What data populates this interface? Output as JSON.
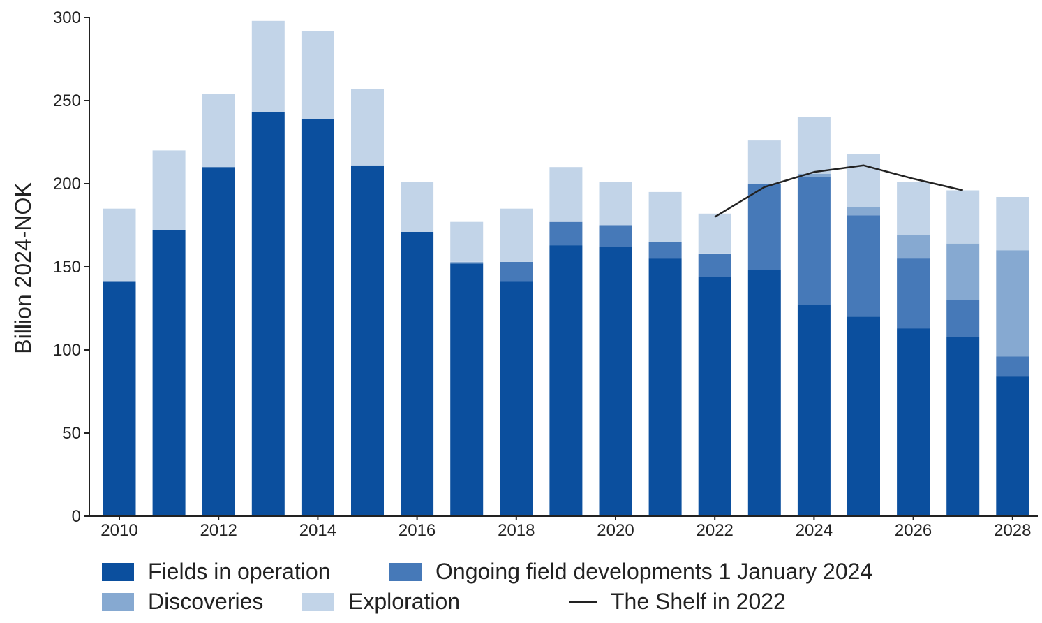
{
  "chart_data": {
    "type": "bar",
    "ylabel": "Billion 2024-NOK",
    "ylim": [
      0,
      300
    ],
    "yticks": [
      0,
      50,
      100,
      150,
      200,
      250,
      300
    ],
    "xtick_labels": [
      "2010",
      "2012",
      "2014",
      "2016",
      "2018",
      "2020",
      "2022",
      "2024",
      "2026",
      "2028"
    ],
    "categories": [
      "2010",
      "2011",
      "2012",
      "2013",
      "2014",
      "2015",
      "2016",
      "2017",
      "2018",
      "2019",
      "2020",
      "2021",
      "2022",
      "2023",
      "2024",
      "2025",
      "2026",
      "2027",
      "2028"
    ],
    "series": [
      {
        "name": "Fields in operation",
        "color": "#0b4f9e",
        "values": [
          141,
          172,
          210,
          243,
          239,
          211,
          171,
          152,
          141,
          163,
          162,
          155,
          144,
          148,
          127,
          120,
          113,
          108,
          84
        ]
      },
      {
        "name": "Ongoing field developments 1 January 2024",
        "color": "#4679b8",
        "values": [
          0,
          0,
          0,
          0,
          0,
          0,
          0,
          0,
          12,
          14,
          13,
          10,
          14,
          52,
          77,
          61,
          42,
          22,
          12
        ]
      },
      {
        "name": "Discoveries",
        "color": "#86a9d1",
        "values": [
          0,
          0,
          0,
          0,
          0,
          0,
          0,
          1,
          0,
          0,
          0,
          0,
          0,
          0,
          2,
          5,
          14,
          34,
          64
        ]
      },
      {
        "name": "Exploration",
        "color": "#c2d4e8",
        "values": [
          44,
          48,
          44,
          55,
          53,
          46,
          30,
          24,
          32,
          33,
          26,
          30,
          24,
          26,
          34,
          32,
          32,
          32,
          32
        ]
      }
    ],
    "line_series": {
      "name": "The Shelf in 2022",
      "color": "#222222",
      "x": [
        "2022",
        "2023",
        "2024",
        "2025",
        "2026",
        "2027"
      ],
      "values": [
        180,
        198,
        207,
        211,
        203,
        196
      ]
    },
    "legend": {
      "placement": "bottom",
      "items": [
        {
          "label": "Fields in operation",
          "kind": "box",
          "color": "#0b4f9e"
        },
        {
          "label": "Ongoing field developments 1 January 2024",
          "kind": "box",
          "color": "#4679b8"
        },
        {
          "label": "Discoveries",
          "kind": "box",
          "color": "#86a9d1"
        },
        {
          "label": "Exploration",
          "kind": "box",
          "color": "#c2d4e8"
        },
        {
          "label": "The Shelf in 2022",
          "kind": "line",
          "color": "#222222"
        }
      ]
    },
    "grid": false
  }
}
